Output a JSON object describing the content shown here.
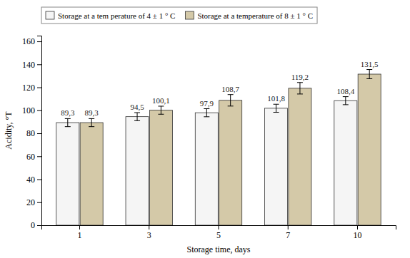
{
  "chart_data": {
    "type": "bar",
    "x_label": "Storage time, days",
    "y_label": "Acidity, °T",
    "categories": [
      1,
      3,
      5,
      7,
      10
    ],
    "series": [
      {
        "name": "Storage at a tem perature of 4 ± 1 ° C",
        "color": "#f5f5f5",
        "values": [
          89.3,
          94.5,
          97.9,
          101.8,
          108.4
        ],
        "errors": [
          3.5,
          3.5,
          3.5,
          3.5,
          3.5
        ],
        "value_labels": [
          "89,3",
          "94,5",
          "97,9",
          "101,8",
          "108,4"
        ]
      },
      {
        "name": "Storage at a temperature of 8 ± 1 ° C",
        "color": "#d4c9a8",
        "values": [
          89.3,
          100.1,
          108.7,
          119.2,
          131.5
        ],
        "errors": [
          3.5,
          3.5,
          5.0,
          5.0,
          4.0
        ],
        "value_labels": [
          "89,3",
          "100,1",
          "108,7",
          "119,2",
          "131,5"
        ]
      }
    ],
    "ylim": [
      0,
      165
    ],
    "yticks": [
      0,
      20,
      40,
      60,
      80,
      100,
      120,
      140,
      160
    ],
    "data_labels": true,
    "legend": "top",
    "grid": false
  }
}
